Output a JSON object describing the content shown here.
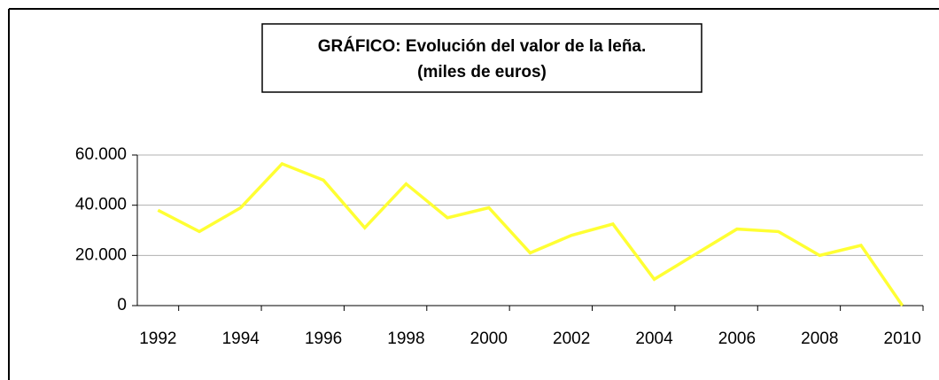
{
  "chart_data": {
    "type": "line",
    "title": "GRÁFICO: Evolución del valor de la leña.",
    "subtitle": "(miles de euros)",
    "categories": [
      "1992",
      null,
      "1994",
      null,
      "1996",
      null,
      "1998",
      null,
      "2000",
      null,
      "2002",
      null,
      "2004",
      null,
      "2006",
      null,
      "2008",
      null,
      "2010"
    ],
    "series": [
      {
        "color": "#ffff33",
        "values": [
          38000,
          29500,
          39000,
          56500,
          50000,
          31000,
          48500,
          35000,
          39000,
          21000,
          28000,
          32500,
          10500,
          20500,
          30500,
          29500,
          20000,
          24000,
          0
        ]
      }
    ],
    "ylim": [
      0,
      60000
    ],
    "yticks": [
      0,
      {
        "value": 20000,
        "label": "20.000"
      },
      {
        "value": 40000,
        "label": "40.000"
      },
      {
        "value": 60000,
        "label": "60.000"
      }
    ],
    "grid": true
  }
}
